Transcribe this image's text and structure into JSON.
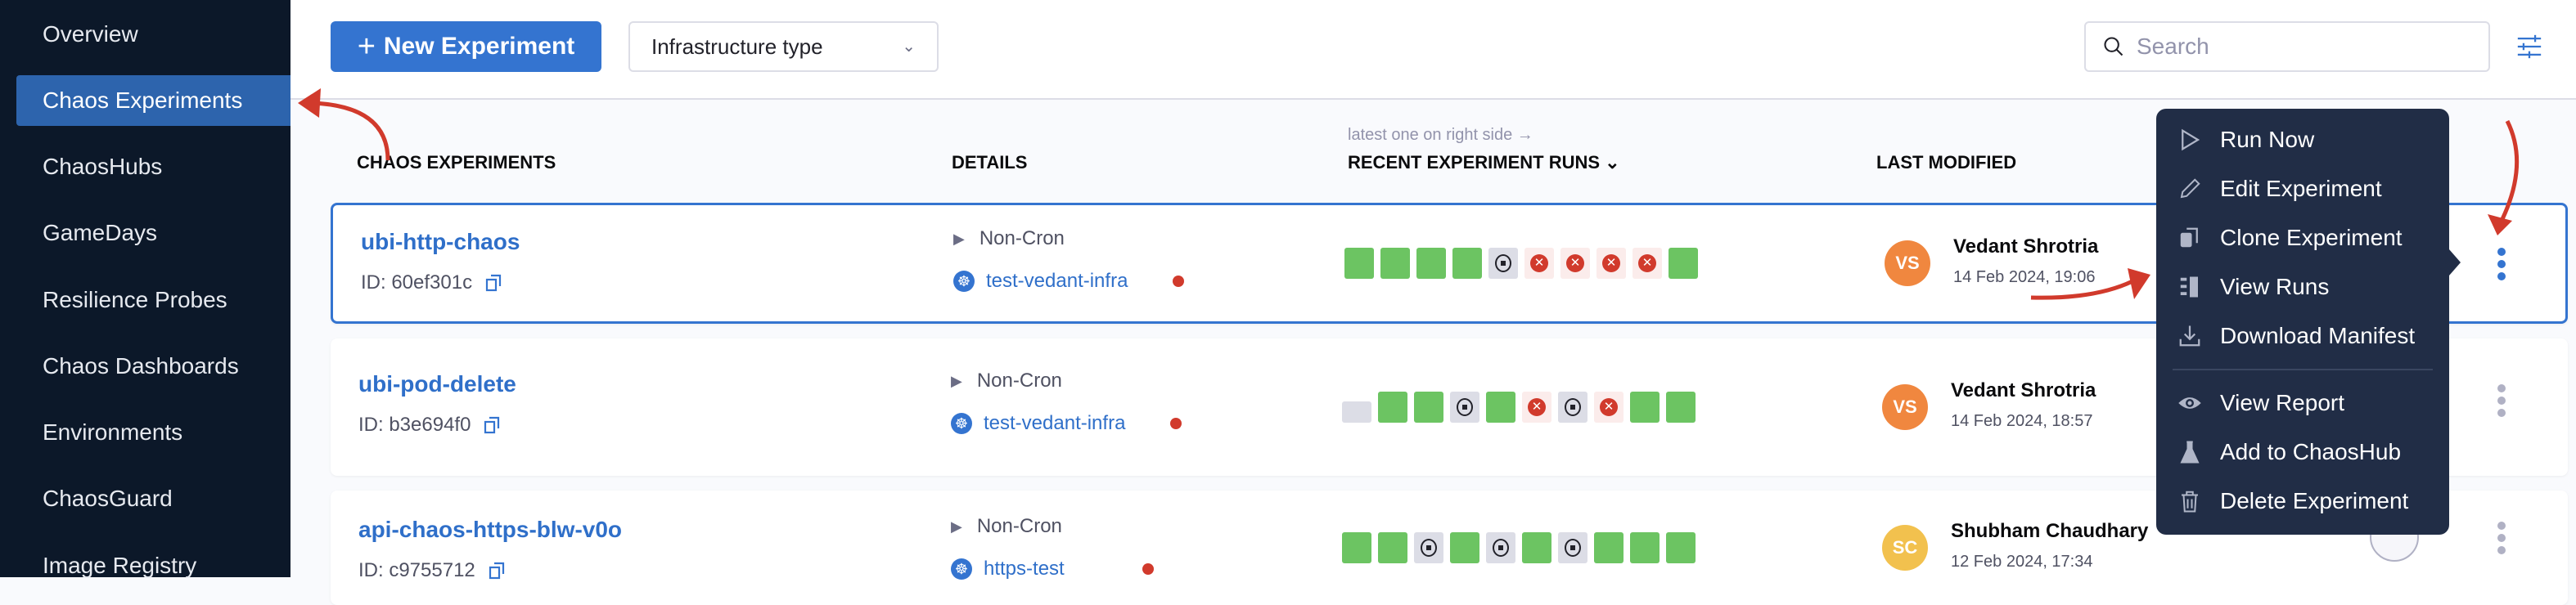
{
  "sidebar": {
    "items": [
      {
        "label": "Overview",
        "active": false
      },
      {
        "label": "Chaos Experiments",
        "active": true
      },
      {
        "label": "ChaosHubs",
        "active": false
      },
      {
        "label": "GameDays",
        "active": false
      },
      {
        "label": "Resilience Probes",
        "active": false
      },
      {
        "label": "Chaos Dashboards",
        "active": false
      },
      {
        "label": "Environments",
        "active": false
      },
      {
        "label": "ChaosGuard",
        "active": false
      },
      {
        "label": "Image Registry",
        "active": false
      }
    ]
  },
  "toolbar": {
    "new_label": "New Experiment",
    "infra_select": "Infrastructure type",
    "search_placeholder": "Search"
  },
  "table": {
    "headers": {
      "name": "CHAOS EXPERIMENTS",
      "details": "DETAILS",
      "runs": "RECENT EXPERIMENT RUNS",
      "modified": "LAST MODIFIED"
    },
    "runs_hint": "latest one on right side →",
    "rows": [
      {
        "name": "ubi-http-chaos",
        "id": "ID: 60ef301c",
        "schedule": "Non-Cron",
        "infra": "test-vedant-infra",
        "runs": [
          "success",
          "success",
          "success",
          "success",
          "stopped",
          "failed",
          "failed",
          "failed",
          "failed",
          "success"
        ],
        "user": "Vedant Shrotria",
        "initials": "VS",
        "avatar_color": "#f0873f",
        "date": "14 Feb 2024, 19:06"
      },
      {
        "name": "ubi-pod-delete",
        "id": "ID: b3e694f0",
        "schedule": "Non-Cron",
        "infra": "test-vedant-infra",
        "runs": [
          "queued",
          "success",
          "success",
          "stopped",
          "success",
          "failed",
          "stopped",
          "failed",
          "success",
          "success"
        ],
        "user": "Vedant Shrotria",
        "initials": "VS",
        "avatar_color": "#f0873f",
        "date": "14 Feb 2024, 18:57"
      },
      {
        "name": "api-chaos-https-blw-v0o",
        "id": "ID: c9755712",
        "schedule": "Non-Cron",
        "infra": "https-test",
        "runs": [
          "success",
          "success",
          "stopped",
          "success",
          "stopped",
          "success",
          "stopped",
          "success",
          "success",
          "success"
        ],
        "user": "Shubham Chaudhary",
        "initials": "SC",
        "avatar_color": "#f2c14e",
        "date": "12 Feb 2024, 17:34"
      }
    ]
  },
  "menu": {
    "items": [
      "Run Now",
      "Edit Experiment",
      "Clone Experiment",
      "View Runs",
      "Download Manifest",
      "View Report",
      "Add to ChaosHub",
      "Delete Experiment"
    ]
  },
  "colors": {
    "accent": "#3474d0",
    "sidebar": "#0c1829",
    "menu": "#212d46",
    "success": "#6cc462",
    "failed": "#d13a2c",
    "annotation": "#d13a2c"
  }
}
